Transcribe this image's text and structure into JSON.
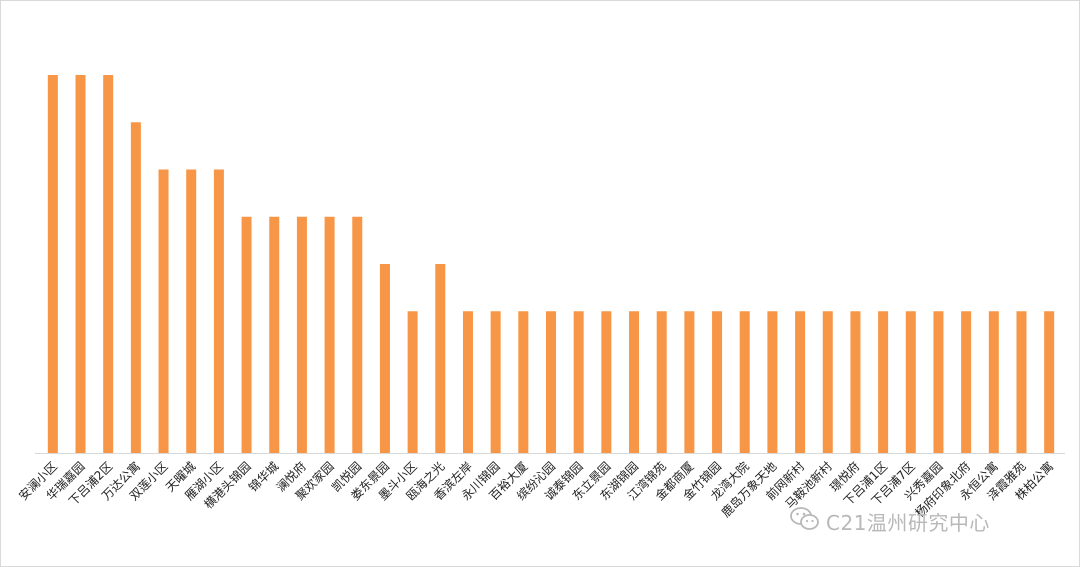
{
  "chart_data": {
    "type": "bar",
    "title": "",
    "xlabel": "",
    "ylabel": "",
    "ylim": [
      0,
      8
    ],
    "grid": false,
    "legend": "none",
    "bar_color": "#F79646",
    "categories": [
      "安澜小区",
      "华瑞嘉园",
      "下吕浦2区",
      "万达公寓",
      "双莲小区",
      "天曜城",
      "雁湖小区",
      "横港头锦园",
      "锦华城",
      "澜悦府",
      "聚欢家园",
      "凯悦园",
      "娄东景园",
      "墨斗小区",
      "瓯海之光",
      "香滨左岸",
      "永川锦园",
      "百裕大厦",
      "缤纷沁园",
      "诚泰锦园",
      "东立景园",
      "东湖锦园",
      "江湾锦苑",
      "金都商厦",
      "金竹锦园",
      "龙湾大院",
      "鹿岛万象天地",
      "前网新村",
      "马鞍池新村",
      "璟悦府",
      "下吕浦1区",
      "下吕浦7区",
      "兴秀嘉园",
      "杨府印象北府",
      "永恒公寓",
      "泽霞雅苑",
      "株柏公寓"
    ],
    "values": [
      8,
      8,
      8,
      7,
      6,
      6,
      6,
      5,
      5,
      5,
      5,
      5,
      4,
      3,
      4,
      3,
      3,
      3,
      3,
      3,
      3,
      3,
      3,
      3,
      3,
      3,
      3,
      3,
      3,
      3,
      3,
      3,
      3,
      3,
      3,
      3,
      3
    ]
  },
  "watermark": {
    "text": "C21温州研究中心",
    "icon": "wechat-icon",
    "color": "#b8b8b8"
  }
}
